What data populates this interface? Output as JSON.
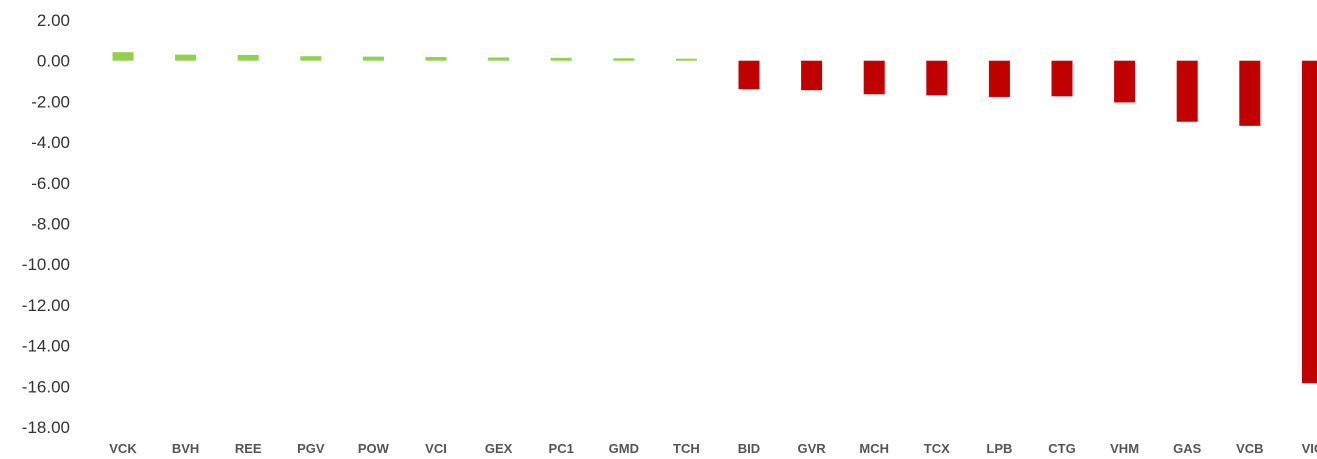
{
  "chart_data": {
    "type": "bar",
    "categories": [
      "VCK",
      "BVH",
      "REE",
      "PGV",
      "POW",
      "VCI",
      "GEX",
      "PC1",
      "GMD",
      "TCH",
      "BID",
      "GVR",
      "MCH",
      "TCX",
      "LPB",
      "CTG",
      "VHM",
      "GAS",
      "VCB",
      "VIC"
    ],
    "values": [
      0.42,
      0.3,
      0.28,
      0.22,
      0.2,
      0.18,
      0.16,
      0.14,
      0.12,
      0.1,
      -1.4,
      -1.45,
      -1.65,
      -1.7,
      -1.78,
      -1.75,
      -2.05,
      -3.0,
      -3.2,
      -15.85
    ],
    "ylim": [
      -18,
      2
    ],
    "y_ticks": [
      "2.00",
      "0.00",
      "-2.00",
      "-4.00",
      "-6.00",
      "-8.00",
      "-10.00",
      "-12.00",
      "-14.00",
      "-16.00",
      "-18.00"
    ],
    "y_tick_values": [
      2,
      0,
      -2,
      -4,
      -6,
      -8,
      -10,
      -12,
      -14,
      -16,
      -18
    ],
    "grid": false,
    "colors": {
      "positive": "#92d050",
      "negative": "#c00000"
    }
  }
}
